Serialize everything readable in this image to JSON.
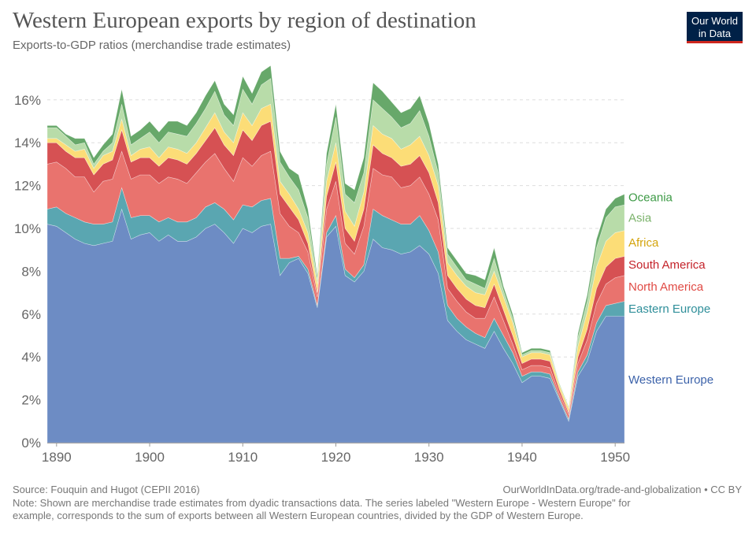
{
  "header": {
    "title": "Western European exports by region of destination",
    "subtitle": "Exports-to-GDP ratios (merchandise trade estimates)"
  },
  "logo": {
    "line1": "Our World",
    "line2": "in Data"
  },
  "footer": {
    "source": "Source: Fouquin and Hugot (CEPII 2016)",
    "credit": "OurWorldInData.org/trade-and-globalization • CC BY",
    "note_line1": "Note: Shown are merchandise trade estimates from dyadic transactions data. The series labeled \"Western Europe - Western Europe\" for",
    "note_line2": "example, corresponds to the sum of exports between all Western European countries, divided by the GDP of Western Europe."
  },
  "chart_data": {
    "type": "area",
    "stacked": true,
    "title": "Western European exports by region of destination",
    "subtitle": "Exports-to-GDP ratios (merchandise trade estimates)",
    "xlabel": "",
    "ylabel": "",
    "xlim": [
      1889,
      1951
    ],
    "ylim": [
      0,
      17.5
    ],
    "x_ticks": [
      "1890",
      "1900",
      "1910",
      "1920",
      "1930",
      "1940",
      "1950"
    ],
    "x_tick_values": [
      1890,
      1900,
      1910,
      1920,
      1930,
      1940,
      1950
    ],
    "y_ticks": [
      "0%",
      "2%",
      "4%",
      "6%",
      "8%",
      "10%",
      "12%",
      "14%",
      "16%"
    ],
    "y_tick_values": [
      0,
      2,
      4,
      6,
      8,
      10,
      12,
      14,
      16
    ],
    "grid": true,
    "legend_position": "right, inline labels",
    "x": [
      1889,
      1890,
      1891,
      1892,
      1893,
      1894,
      1895,
      1896,
      1897,
      1898,
      1899,
      1900,
      1901,
      1902,
      1903,
      1904,
      1905,
      1906,
      1907,
      1908,
      1909,
      1910,
      1911,
      1912,
      1913,
      1914,
      1915,
      1916,
      1917,
      1918,
      1919,
      1920,
      1921,
      1922,
      1923,
      1924,
      1925,
      1926,
      1927,
      1928,
      1929,
      1930,
      1931,
      1932,
      1933,
      1934,
      1935,
      1936,
      1937,
      1938,
      1939,
      1940,
      1941,
      1942,
      1943,
      1944,
      1945,
      1946,
      1947,
      1948,
      1949,
      1950,
      1951
    ],
    "series": [
      {
        "name": "Western Europe",
        "color": "#6d8cc4",
        "label_color": "#3d63aa",
        "values": [
          10.2,
          10.1,
          9.8,
          9.5,
          9.3,
          9.2,
          9.3,
          9.4,
          10.9,
          9.5,
          9.7,
          9.8,
          9.4,
          9.7,
          9.4,
          9.4,
          9.6,
          10.0,
          10.2,
          9.8,
          9.3,
          10.0,
          9.8,
          10.1,
          10.2,
          7.8,
          8.4,
          8.6,
          7.9,
          6.3,
          9.6,
          10.1,
          7.8,
          7.5,
          8.0,
          9.5,
          9.1,
          9.0,
          8.8,
          8.9,
          9.2,
          8.8,
          7.9,
          5.7,
          5.2,
          4.8,
          4.6,
          4.4,
          5.2,
          4.4,
          3.7,
          2.8,
          3.1,
          3.1,
          3.0,
          2.0,
          1.0,
          3.1,
          3.8,
          5.2,
          5.9,
          5.9,
          5.9
        ]
      },
      {
        "name": "Eastern Europe",
        "color": "#5aa6b1",
        "label_color": "#2f8f9a",
        "values": [
          0.7,
          0.9,
          0.9,
          1.0,
          1.0,
          1.0,
          0.9,
          0.9,
          1.0,
          1.0,
          0.9,
          0.8,
          0.9,
          0.8,
          0.9,
          0.9,
          0.9,
          1.0,
          1.0,
          1.1,
          1.1,
          1.1,
          1.2,
          1.2,
          1.2,
          0.8,
          0.2,
          0.1,
          0.2,
          0.1,
          0.2,
          0.5,
          0.3,
          0.2,
          0.3,
          1.4,
          1.5,
          1.4,
          1.4,
          1.3,
          1.4,
          1.1,
          1.0,
          0.7,
          0.6,
          0.6,
          0.5,
          0.5,
          0.6,
          0.6,
          0.5,
          0.3,
          0.2,
          0.2,
          0.2,
          0.1,
          0.1,
          0.2,
          0.3,
          0.4,
          0.5,
          0.6,
          0.7
        ]
      },
      {
        "name": "North America",
        "color": "#e9736e",
        "label_color": "#e04a44",
        "values": [
          2.1,
          2.1,
          2.1,
          1.9,
          2.1,
          1.5,
          2.0,
          2.0,
          1.7,
          1.8,
          1.9,
          1.9,
          1.8,
          1.9,
          2.0,
          1.8,
          2.1,
          2.1,
          2.3,
          1.9,
          1.8,
          2.2,
          1.9,
          2.1,
          2.2,
          2.1,
          1.5,
          1.1,
          0.8,
          0.4,
          1.1,
          1.6,
          1.2,
          1.1,
          1.8,
          1.9,
          1.9,
          2.0,
          1.7,
          1.8,
          1.8,
          1.7,
          1.5,
          0.8,
          0.8,
          0.7,
          0.7,
          0.9,
          1.0,
          0.7,
          0.4,
          0.3,
          0.3,
          0.3,
          0.3,
          0.2,
          0.2,
          0.4,
          0.7,
          0.9,
          1.0,
          1.2,
          1.2
        ]
      },
      {
        "name": "South America",
        "color": "#d65153",
        "label_color": "#c4232a",
        "values": [
          1.0,
          0.9,
          0.8,
          0.9,
          0.9,
          0.8,
          0.8,
          0.9,
          1.0,
          0.8,
          0.8,
          0.8,
          0.8,
          0.9,
          0.9,
          0.9,
          0.9,
          1.0,
          1.2,
          1.1,
          1.2,
          1.3,
          1.2,
          1.4,
          1.4,
          0.9,
          0.9,
          0.6,
          0.4,
          0.2,
          0.6,
          0.9,
          0.7,
          0.6,
          0.8,
          1.1,
          1.0,
          0.9,
          1.0,
          1.0,
          1.0,
          1.0,
          0.8,
          0.6,
          0.6,
          0.6,
          0.6,
          0.5,
          0.6,
          0.5,
          0.4,
          0.3,
          0.3,
          0.3,
          0.3,
          0.2,
          0.1,
          0.3,
          0.5,
          0.7,
          0.8,
          0.9,
          0.9
        ]
      },
      {
        "name": "Africa",
        "color": "#fcdd77",
        "label_color": "#d4a40c",
        "values": [
          0.2,
          0.2,
          0.3,
          0.3,
          0.4,
          0.3,
          0.4,
          0.4,
          0.5,
          0.3,
          0.4,
          0.5,
          0.4,
          0.5,
          0.5,
          0.5,
          0.5,
          0.6,
          0.7,
          0.6,
          0.6,
          0.8,
          0.7,
          0.8,
          0.8,
          0.6,
          0.6,
          0.5,
          0.5,
          0.4,
          0.7,
          0.9,
          0.8,
          0.7,
          0.8,
          0.9,
          0.9,
          0.9,
          0.8,
          0.9,
          0.9,
          0.8,
          0.8,
          0.6,
          0.6,
          0.6,
          0.6,
          0.6,
          0.6,
          0.6,
          0.6,
          0.3,
          0.3,
          0.3,
          0.3,
          0.2,
          0.2,
          0.5,
          0.8,
          1.0,
          1.2,
          1.2,
          1.2
        ]
      },
      {
        "name": "Asia",
        "color": "#b8dca9",
        "label_color": "#7ab26a",
        "values": [
          0.5,
          0.5,
          0.4,
          0.3,
          0.3,
          0.2,
          0.2,
          0.4,
          0.7,
          0.5,
          0.5,
          0.7,
          0.7,
          0.7,
          0.7,
          0.8,
          0.9,
          0.9,
          1.0,
          0.8,
          0.8,
          1.1,
          1.0,
          1.1,
          1.2,
          0.9,
          0.8,
          0.9,
          0.7,
          0.2,
          0.8,
          1.2,
          0.8,
          1.1,
          0.9,
          1.2,
          1.2,
          1.0,
          1.0,
          1.0,
          1.2,
          0.9,
          0.6,
          0.4,
          0.4,
          0.3,
          0.4,
          0.3,
          0.6,
          0.3,
          0.2,
          0.1,
          0.1,
          0.1,
          0.1,
          0.1,
          0.1,
          0.4,
          0.5,
          0.9,
          1.1,
          1.2,
          1.2
        ]
      },
      {
        "name": "Oceania",
        "color": "#67a86a",
        "label_color": "#3d9a46",
        "values": [
          0.1,
          0.1,
          0.1,
          0.3,
          0.2,
          0.3,
          0.3,
          0.4,
          0.7,
          0.4,
          0.4,
          0.5,
          0.5,
          0.5,
          0.6,
          0.5,
          0.5,
          0.6,
          0.5,
          0.5,
          0.5,
          0.6,
          0.5,
          0.6,
          0.6,
          0.5,
          0.4,
          0.7,
          0.4,
          0.2,
          0.5,
          0.6,
          0.5,
          0.6,
          0.7,
          0.8,
          0.8,
          0.7,
          0.7,
          0.7,
          0.7,
          0.6,
          0.4,
          0.3,
          0.3,
          0.3,
          0.4,
          0.4,
          0.5,
          0.2,
          0.2,
          0.1,
          0.1,
          0.1,
          0.1,
          0.0,
          0.0,
          0.2,
          0.3,
          0.4,
          0.4,
          0.4,
          0.5
        ]
      }
    ]
  }
}
